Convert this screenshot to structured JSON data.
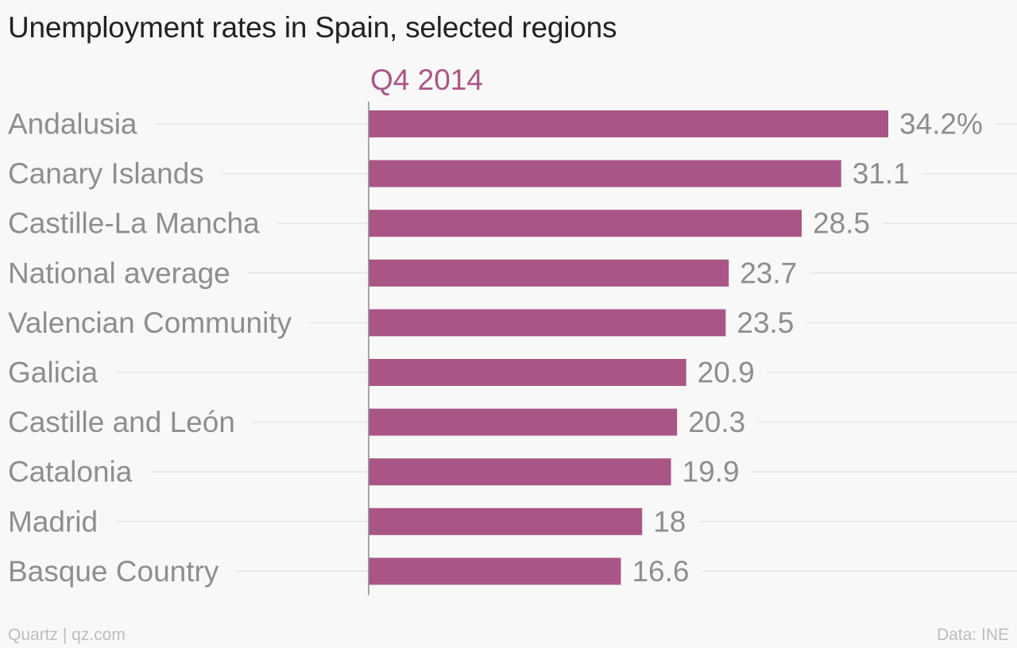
{
  "chart_data": {
    "type": "bar",
    "orientation": "horizontal",
    "title": "Unemployment rates in Spain, selected regions",
    "series": [
      {
        "name": "Q4 2014",
        "color": "#a95686"
      }
    ],
    "categories": [
      "Andalusia",
      "Canary Islands",
      "Castille-La Mancha",
      "National average",
      "Valencian Community",
      "Galicia",
      "Castille and León",
      "Catalonia",
      "Madrid",
      "Basque Country"
    ],
    "values": [
      34.2,
      31.1,
      28.5,
      23.7,
      23.5,
      20.9,
      20.3,
      19.9,
      18,
      16.6
    ],
    "value_labels": [
      "34.2%",
      "31.1",
      "28.5",
      "23.7",
      "23.5",
      "20.9",
      "20.3",
      "19.9",
      "18",
      "16.6"
    ],
    "xlim": [
      0,
      34.2
    ],
    "grid": true,
    "colors": {
      "bar": "#a95686",
      "series_label": "#a95686",
      "category_label": "#8e8e8e",
      "value_label": "#8e8e8e",
      "grid": "#e6e6e6",
      "axis": "#8a8a8a"
    }
  },
  "footer": {
    "source_left": "Quartz | qz.com",
    "source_right": "Data: INE"
  }
}
